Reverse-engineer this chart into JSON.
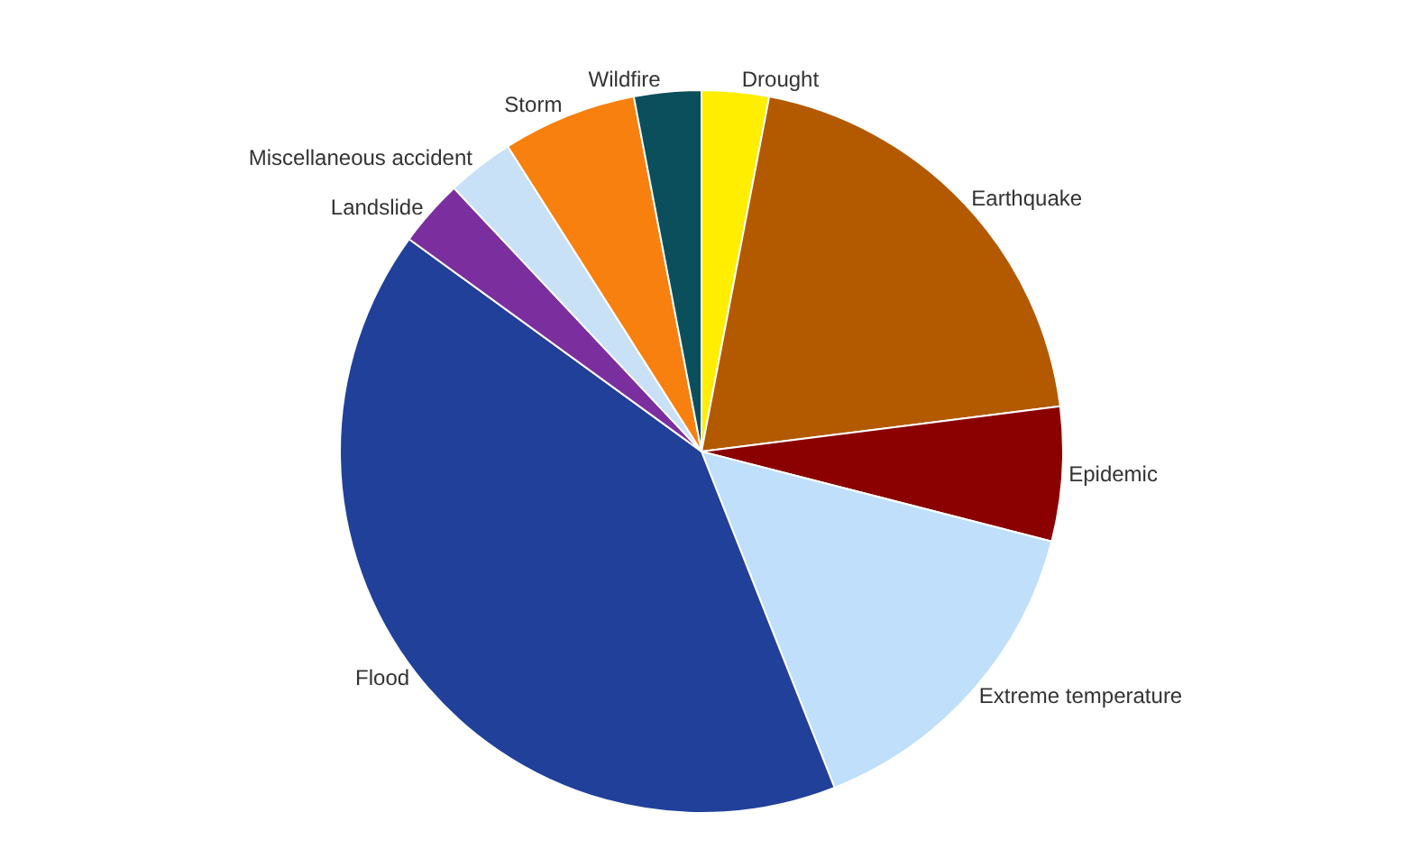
{
  "chart_data": {
    "type": "pie",
    "categories": [
      "Drought",
      "Earthquake",
      "Epidemic",
      "Extreme temperature",
      "Flood",
      "Landslide",
      "Miscellaneous accident",
      "Storm",
      "Wildfire"
    ],
    "values": [
      3,
      20,
      6,
      15,
      41,
      3,
      3,
      6,
      3
    ],
    "colors": [
      "#ffee00",
      "#b35a00",
      "#8b0000",
      "#bfdffb",
      "#21409a",
      "#7b2f9e",
      "#c8e1f7",
      "#f7800f",
      "#0c4f5c"
    ],
    "legend": false
  }
}
